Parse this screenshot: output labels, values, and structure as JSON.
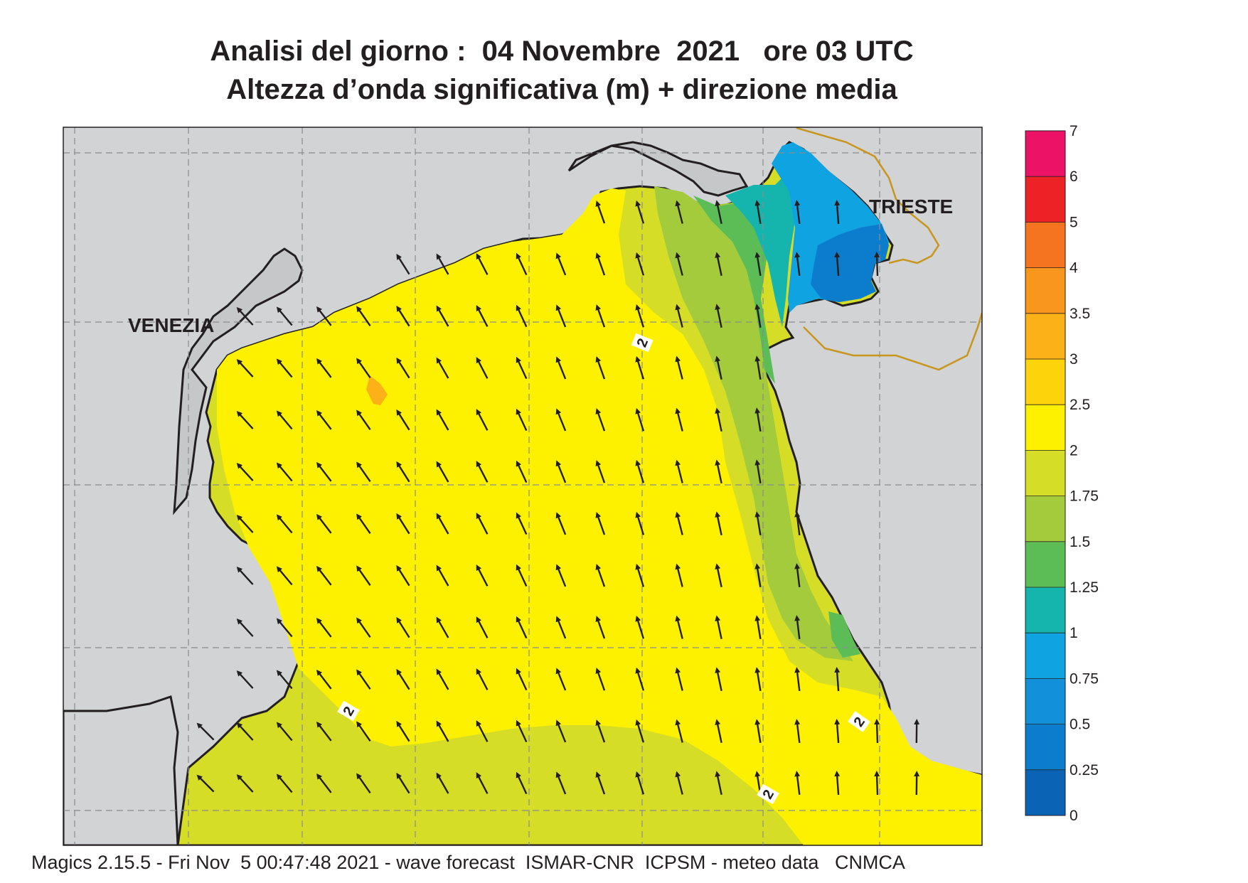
{
  "title": {
    "line1": "Analisi del giorno :  04 Novembre  2021   ore 03 UTC",
    "line2": "Altezza d’onda significativa (m) + direzione media"
  },
  "footer": "Magics 2.15.5 - Fri Nov  5 00:47:48 2021 - wave forecast  ISMAR-CNR  ICPSM - meteo data   CNMCA",
  "cities": [
    {
      "name": "VENEZIA"
    },
    {
      "name": "TRIESTE"
    }
  ],
  "contour_labels": [
    "2",
    "2",
    "2",
    "2"
  ],
  "colorbar": {
    "ticks": [
      "0",
      "0.25",
      "0.5",
      "0.75",
      "1",
      "1.25",
      "1.5",
      "1.75",
      "2",
      "2.5",
      "3",
      "3.5",
      "4",
      "5",
      "6",
      "7"
    ],
    "colors": [
      "#0a63b4",
      "#0b7dcc",
      "#1290d9",
      "#10a3e2",
      "#15b4ac",
      "#5cbc56",
      "#a3cb3b",
      "#d6dd26",
      "#fdf100",
      "#fdd30c",
      "#fbb117",
      "#f8961d",
      "#f47420",
      "#ec2227",
      "#ec1266"
    ]
  },
  "colors": {
    "land": "#d1d3d4",
    "coast": "#231f20",
    "arrow": "#231f20",
    "border": "#c8961e"
  },
  "arrow_grid": {
    "rows": 12,
    "cols": 19,
    "direction": "from SE toward NNW/NW"
  }
}
